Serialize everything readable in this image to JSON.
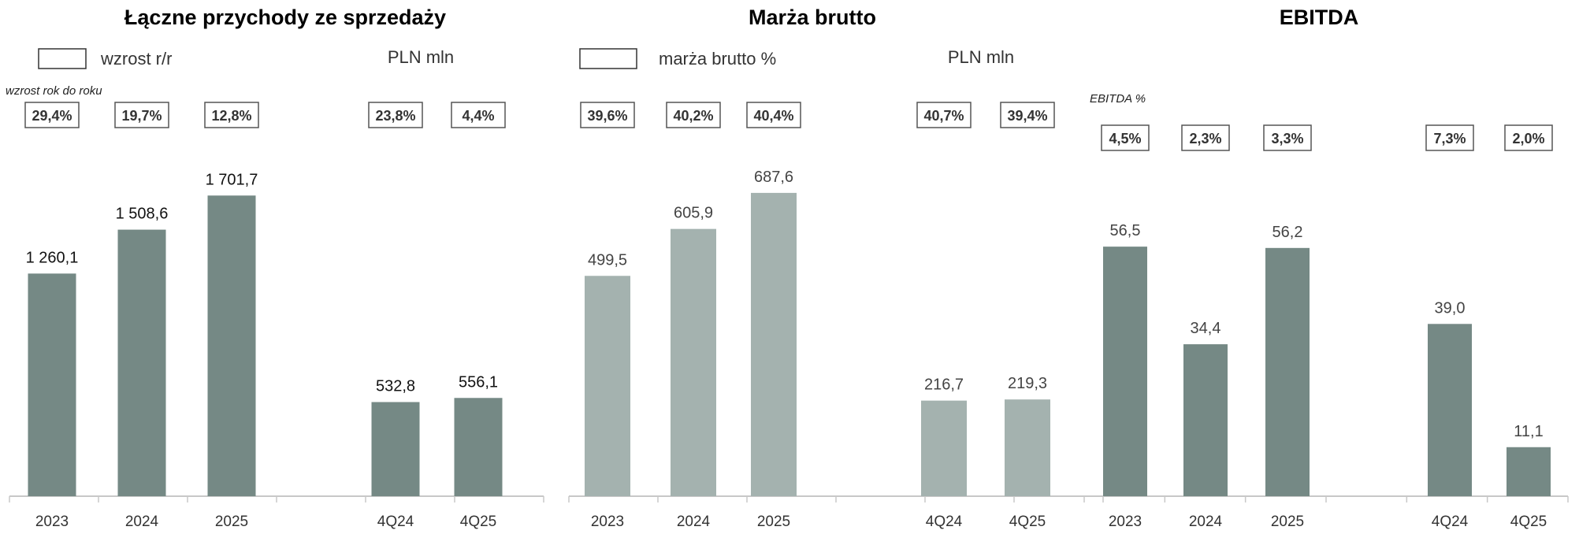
{
  "chart_data": [
    {
      "type": "bar",
      "title": "Łączne przychody ze sprzedaży",
      "legend_label": "wzrost r/r",
      "unit": "PLN mln",
      "note": "wzrost rok do roku",
      "categories": [
        "2023",
        "2024",
        "2025",
        "",
        "4Q24",
        "4Q25"
      ],
      "values": [
        1260.1,
        1508.6,
        1701.7,
        null,
        532.8,
        556.1
      ],
      "value_labels": [
        "1 260,1",
        "1 508,6",
        "1 701,7",
        "",
        "532,8",
        "556,1"
      ],
      "pct_labels": [
        "29,4%",
        "19,7%",
        "12,8%",
        "",
        "23,8%",
        "4,4%"
      ],
      "bar_color": "#758985",
      "ylim": [
        0,
        1850
      ]
    },
    {
      "type": "bar",
      "title": "Marża brutto",
      "legend_label": "marża brutto %",
      "unit": "PLN mln",
      "categories": [
        "2023",
        "2024",
        "2025",
        "",
        "4Q24",
        "4Q25"
      ],
      "values": [
        499.5,
        605.9,
        687.6,
        null,
        216.7,
        219.3
      ],
      "value_labels": [
        "499,5",
        "605,9",
        "687,6",
        "",
        "216,7",
        "219,3"
      ],
      "pct_labels": [
        "39,6%",
        "40,2%",
        "40,4%",
        "",
        "40,7%",
        "39,4%"
      ],
      "bar_color": "#a4b2af",
      "ylim": [
        0,
        741
      ]
    },
    {
      "type": "bar",
      "title": "EBITDA",
      "note": "EBITDA %",
      "categories": [
        "2023",
        "2024",
        "2025",
        "",
        "4Q24",
        "4Q25"
      ],
      "values": [
        56.5,
        34.4,
        56.2,
        null,
        39.0,
        11.1
      ],
      "value_labels": [
        "56,5",
        "34,4",
        "56,2",
        "",
        "39,0",
        "11,1"
      ],
      "pct_labels": [
        "4,5%",
        "2,3%",
        "3,3%",
        "",
        "7,3%",
        "2,0%"
      ],
      "bar_color": "#758985",
      "ylim": [
        0,
        74
      ]
    }
  ]
}
